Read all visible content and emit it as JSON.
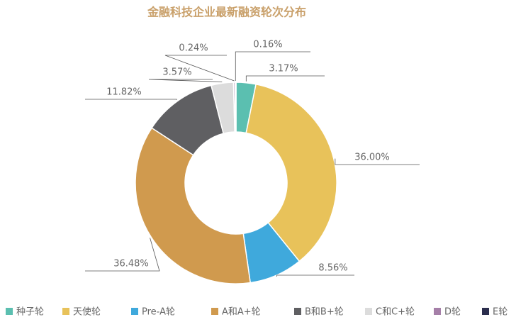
{
  "chart_data": {
    "type": "donut",
    "title": "金融科技企业最新融资轮次分布",
    "categories": [
      "种子轮",
      "天使轮",
      "Pre-A轮",
      "A和A+轮",
      "B和B+轮",
      "C和C+轮",
      "D轮",
      "E轮"
    ],
    "values": [
      3.17,
      36.0,
      8.56,
      36.48,
      11.82,
      3.57,
      0.24,
      0.16
    ],
    "value_labels": [
      "3.17%",
      "36.00%",
      "8.56%",
      "36.48%",
      "11.82%",
      "3.57%",
      "0.24%",
      "0.16%"
    ],
    "colors": [
      "#5bbfb0",
      "#e8c25a",
      "#3fa9dc",
      "#d09a4e",
      "#5f5f62",
      "#dcdcdc",
      "#a57fa8",
      "#2b2d4d"
    ],
    "legend": "bottom"
  }
}
